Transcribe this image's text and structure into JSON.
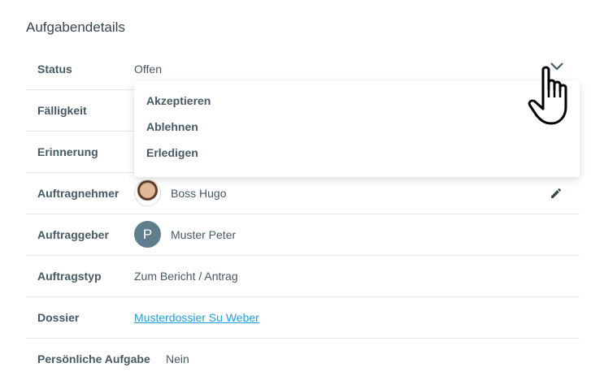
{
  "section_title": "Aufgabendetails",
  "rows": [
    {
      "label": "Status",
      "value": "Offen"
    },
    {
      "label": "Fälligkeit"
    },
    {
      "label": "Erinnerung"
    },
    {
      "label": "Auftragnehmer",
      "value": "Boss Hugo"
    },
    {
      "label": "Auftraggeber",
      "value": "Muster Peter",
      "avatar_letter": "P"
    },
    {
      "label": "Auftragstyp",
      "value": "Zum Bericht / Antrag"
    },
    {
      "label": "Dossier",
      "value": "Musterdossier Su Weber"
    },
    {
      "label": "Persönliche Aufgabe",
      "value": "Nein"
    }
  ],
  "status_options": [
    "Akzeptieren",
    "Ablehnen",
    "Erledigen"
  ],
  "colors": {
    "link": "#1ea0e0",
    "avatar": "#607d8b",
    "text": "#455a64"
  },
  "icons": [
    "chevron-down-icon",
    "pencil-icon",
    "hand-pointer-cursor"
  ]
}
